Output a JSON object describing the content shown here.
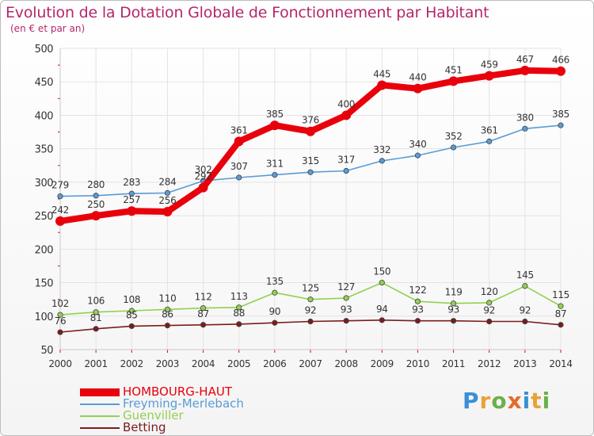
{
  "header": {
    "title": "Evolution de la Dotation Globale de Fonctionnement par Habitant",
    "subtitle": "(en € et par an)"
  },
  "brand": {
    "letters": [
      "P",
      "r",
      "o",
      "x",
      "i",
      "t",
      "i"
    ],
    "colors": [
      "#3a8fd6",
      "#e8a23a",
      "#6ab04c",
      "#e36b2c",
      "#3a8fd6",
      "#e8a23a",
      "#6ab04c"
    ]
  },
  "colors": {
    "title": "#b5266b",
    "axis_text": "#333333",
    "grid": "#e3e3e3",
    "tick": "#e2001a"
  },
  "chart_data": {
    "type": "line",
    "title": "Evolution de la Dotation Globale de Fonctionnement par Habitant",
    "subtitle": "(en € et par an)",
    "xlabel": "",
    "ylabel": "",
    "x": [
      "2000",
      "2001",
      "2002",
      "2003",
      "2004",
      "2005",
      "2006",
      "2007",
      "2008",
      "2009",
      "2010",
      "2011",
      "2012",
      "2013",
      "2014"
    ],
    "ylim": [
      50,
      500
    ],
    "yticks": [
      50,
      100,
      150,
      200,
      250,
      300,
      350,
      400,
      450,
      500
    ],
    "grid": true,
    "legend_position": "bottom-left",
    "series": [
      {
        "name": "HOMBOURG-HAUT",
        "color": "#e8000b",
        "emphasis": true,
        "label_position": "above",
        "values": [
          242,
          250,
          257,
          256,
          292,
          361,
          385,
          376,
          400,
          445,
          440,
          451,
          459,
          467,
          466
        ]
      },
      {
        "name": "Freyming-Merlebach",
        "color": "#5b9bd5",
        "emphasis": false,
        "label_position": "above",
        "values": [
          279,
          280,
          283,
          284,
          302,
          307,
          311,
          315,
          317,
          332,
          340,
          352,
          361,
          380,
          385
        ]
      },
      {
        "name": "Guenviller",
        "color": "#92d050",
        "emphasis": false,
        "label_position": "above",
        "values": [
          102,
          106,
          108,
          110,
          112,
          113,
          135,
          125,
          127,
          150,
          122,
          119,
          120,
          145,
          115
        ]
      },
      {
        "name": "Betting",
        "color": "#7b1c1c",
        "emphasis": false,
        "label_position": "above",
        "values": [
          76,
          81,
          85,
          86,
          87,
          88,
          90,
          92,
          93,
          94,
          93,
          93,
          92,
          92,
          87
        ]
      }
    ]
  }
}
